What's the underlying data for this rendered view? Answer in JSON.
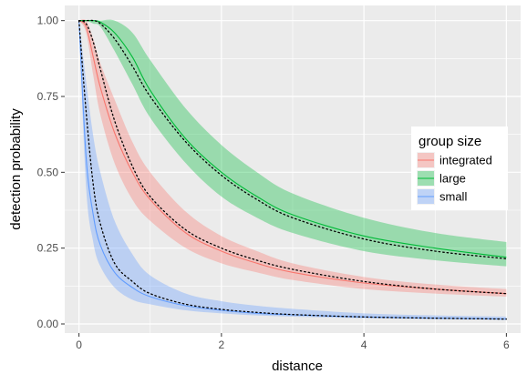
{
  "chart_data": {
    "type": "line",
    "title": "",
    "xlabel": "distance",
    "ylabel": "detection probability",
    "xlim": [
      -0.2,
      6.2
    ],
    "ylim": [
      -0.03,
      1.05
    ],
    "x_ticks": [
      0,
      2,
      4,
      6
    ],
    "x_tick_labels": [
      "0",
      "2",
      "4",
      "6"
    ],
    "y_ticks": [
      0,
      0.25,
      0.5,
      0.75,
      1
    ],
    "y_tick_labels": [
      "0.00",
      "0.25",
      "0.50",
      "0.75",
      "1.00"
    ],
    "grid": true,
    "legend": {
      "title": "group size",
      "position": "right"
    },
    "x": [
      0,
      0.1,
      0.2,
      0.3,
      0.5,
      0.75,
      1,
      1.5,
      2,
      2.5,
      3,
      4,
      5,
      6
    ],
    "series": [
      {
        "name": "integrated",
        "color": "#f8766d",
        "fill": "#f8766d",
        "y": [
          1.0,
          0.98,
          0.88,
          0.78,
          0.63,
          0.5,
          0.41,
          0.3,
          0.24,
          0.2,
          0.17,
          0.135,
          0.115,
          0.1
        ],
        "lower": [
          1.0,
          0.96,
          0.82,
          0.69,
          0.53,
          0.41,
          0.34,
          0.25,
          0.2,
          0.17,
          0.145,
          0.115,
          0.1,
          0.09
        ],
        "upper": [
          1.0,
          1.0,
          0.94,
          0.86,
          0.74,
          0.6,
          0.5,
          0.37,
          0.29,
          0.24,
          0.2,
          0.155,
          0.13,
          0.115
        ]
      },
      {
        "name": "large",
        "color": "#00ba38",
        "fill": "#00ba38",
        "y": [
          1.0,
          1.0,
          1.0,
          0.995,
          0.96,
          0.88,
          0.77,
          0.61,
          0.5,
          0.42,
          0.36,
          0.29,
          0.25,
          0.22
        ],
        "lower": [
          1.0,
          1.0,
          0.99,
          0.98,
          0.9,
          0.79,
          0.68,
          0.53,
          0.42,
          0.35,
          0.3,
          0.24,
          0.21,
          0.19
        ],
        "upper": [
          1.0,
          1.0,
          1.0,
          1.0,
          1.0,
          0.96,
          0.87,
          0.71,
          0.59,
          0.5,
          0.43,
          0.35,
          0.3,
          0.27
        ]
      },
      {
        "name": "small",
        "color": "#619cff",
        "fill": "#619cff",
        "y": [
          1.0,
          0.55,
          0.36,
          0.26,
          0.17,
          0.12,
          0.09,
          0.06,
          0.045,
          0.035,
          0.03,
          0.023,
          0.019,
          0.016
        ],
        "lower": [
          1.0,
          0.45,
          0.27,
          0.19,
          0.12,
          0.08,
          0.065,
          0.045,
          0.035,
          0.028,
          0.024,
          0.019,
          0.016,
          0.014
        ],
        "upper": [
          1.0,
          0.8,
          0.62,
          0.5,
          0.34,
          0.23,
          0.16,
          0.1,
          0.075,
          0.06,
          0.05,
          0.035,
          0.028,
          0.024
        ]
      }
    ],
    "reference_curves": [
      {
        "style": "dotted",
        "color": "#000000",
        "y": [
          1.0,
          0.99,
          0.93,
          0.84,
          0.67,
          0.52,
          0.42,
          0.31,
          0.25,
          0.21,
          0.18,
          0.14,
          0.115,
          0.1
        ]
      },
      {
        "style": "dotted",
        "color": "#000000",
        "y": [
          1.0,
          1.0,
          1.0,
          0.99,
          0.94,
          0.85,
          0.75,
          0.6,
          0.49,
          0.41,
          0.35,
          0.28,
          0.24,
          0.215
        ]
      },
      {
        "style": "dotted",
        "color": "#000000",
        "y": [
          1.0,
          0.7,
          0.46,
          0.33,
          0.2,
          0.14,
          0.1,
          0.065,
          0.048,
          0.038,
          0.031,
          0.023,
          0.019,
          0.016
        ]
      }
    ]
  }
}
